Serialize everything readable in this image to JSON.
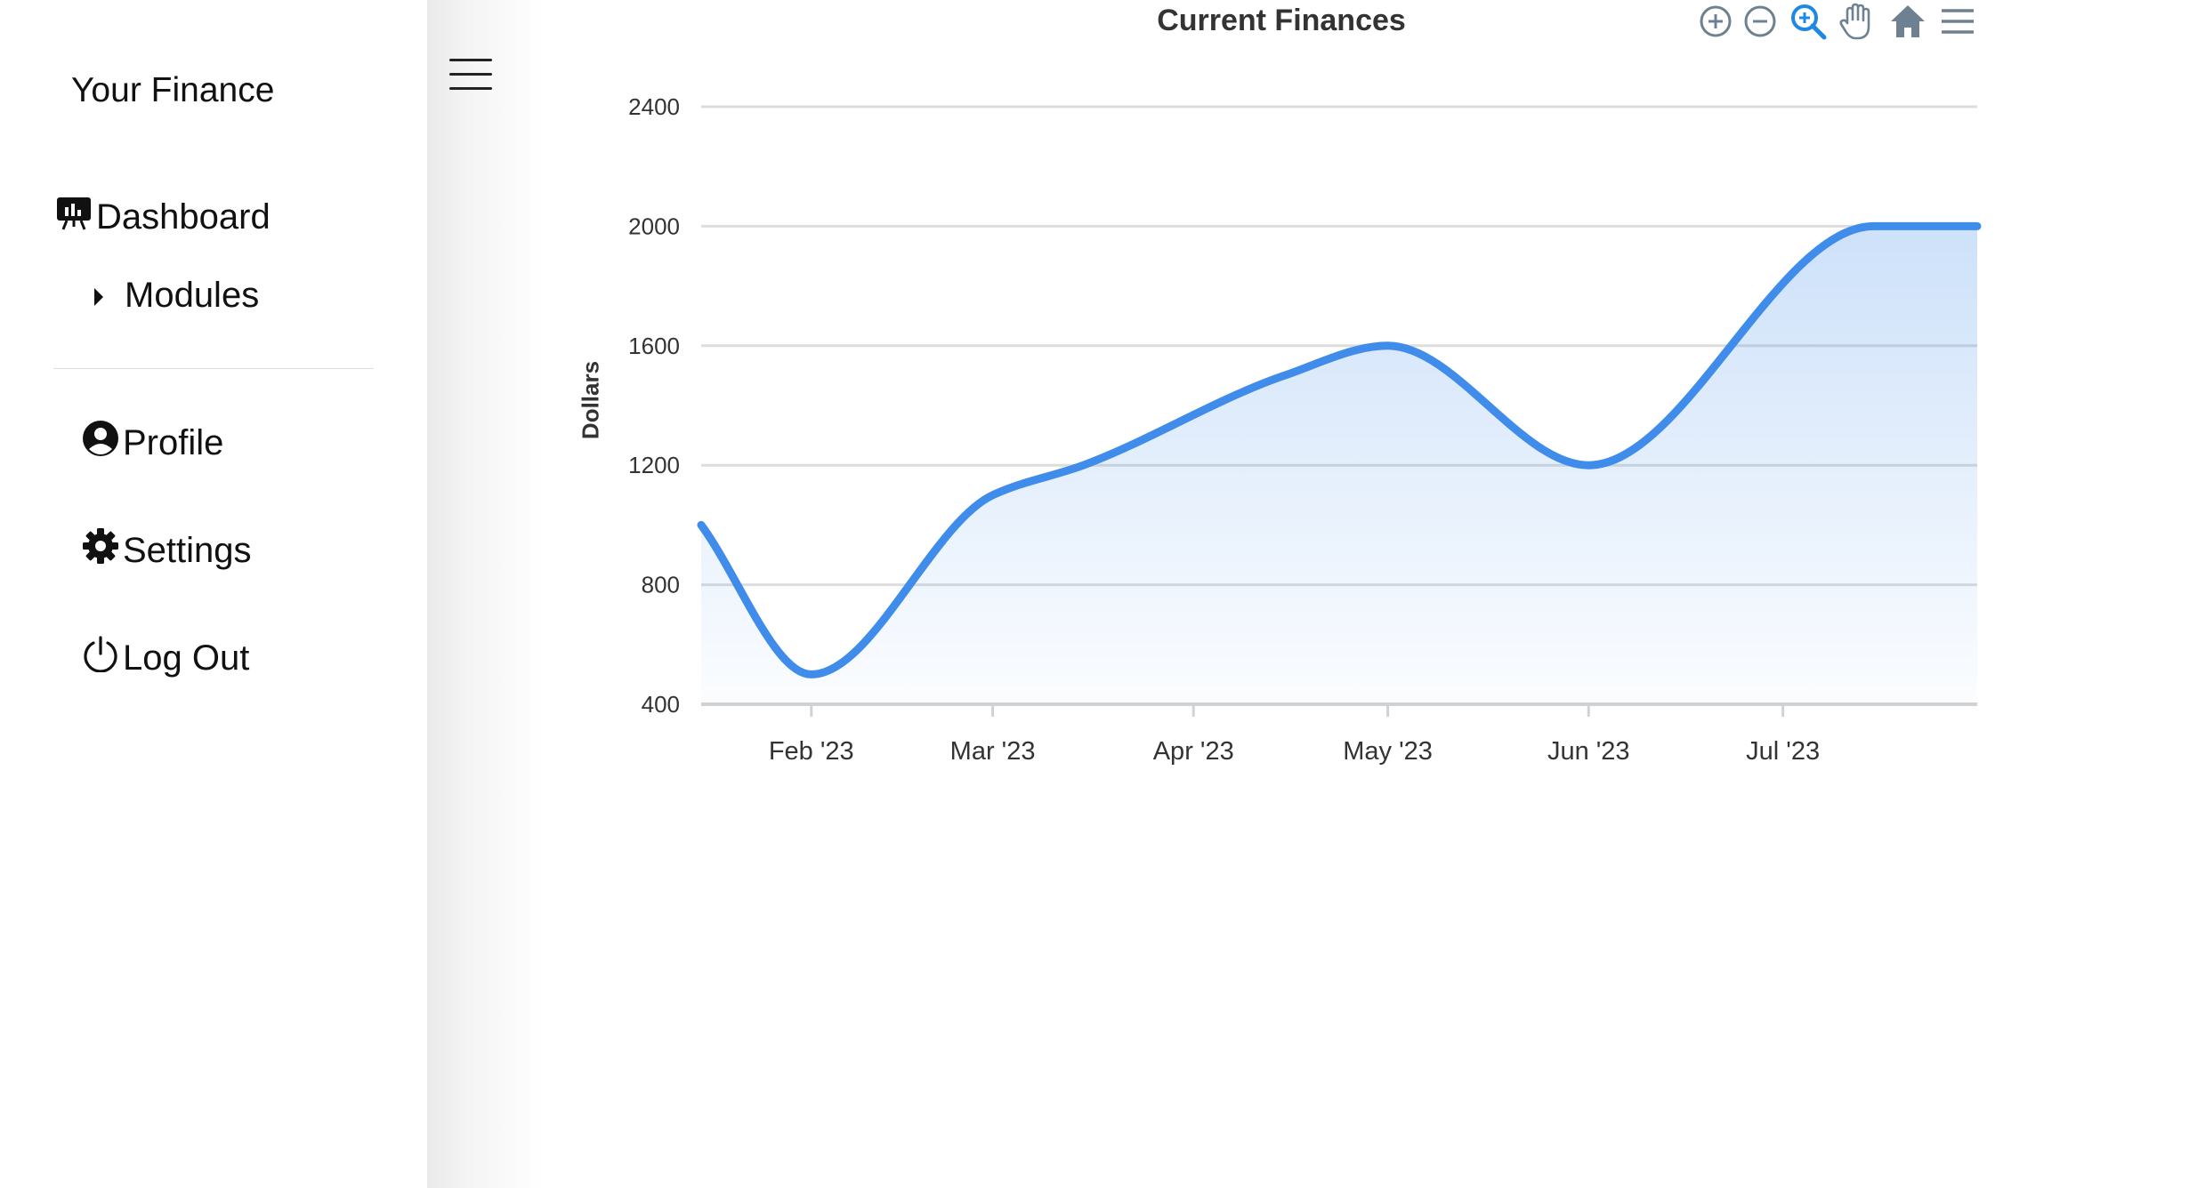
{
  "sidebar": {
    "brand": "Your Finance",
    "items": [
      {
        "label": "Dashboard",
        "icon": "dashboard-icon"
      },
      {
        "label": "Modules",
        "icon": "caret-right-icon"
      },
      {
        "label": "Profile",
        "icon": "user-circle-icon"
      },
      {
        "label": "Settings",
        "icon": "gear-icon"
      },
      {
        "label": "Log Out",
        "icon": "power-icon"
      }
    ]
  },
  "toolbar": {
    "icons": [
      "zoom-in-icon",
      "zoom-out-icon",
      "selection-zoom-icon",
      "pan-hand-icon",
      "home-reset-icon",
      "menu-icon"
    ],
    "active_color": "#1e88e5",
    "inactive_color": "#6e8192"
  },
  "chart_data": {
    "type": "area",
    "title": "Current Finances",
    "xlabel": "",
    "ylabel": "Dollars",
    "x": [
      "2023-01-15",
      "2023-02-01",
      "2023-03-01",
      "2023-03-15",
      "2023-04-15",
      "2023-05-01",
      "2023-06-01",
      "2023-07-15"
    ],
    "values": [
      1000,
      500,
      1100,
      1200,
      1500,
      1600,
      1200,
      2000
    ],
    "x_ticks": [
      "Feb '23",
      "Mar '23",
      "Apr '23",
      "May '23",
      "Jun '23",
      "Jul '23"
    ],
    "y_ticks": [
      400,
      800,
      1200,
      1600,
      2000,
      2400
    ],
    "ylim": [
      400,
      2400
    ],
    "grid": true,
    "colors": {
      "line": "#3f8cea",
      "fill": "#3f8cea",
      "grid": "#dddddd",
      "text": "#333333"
    }
  }
}
